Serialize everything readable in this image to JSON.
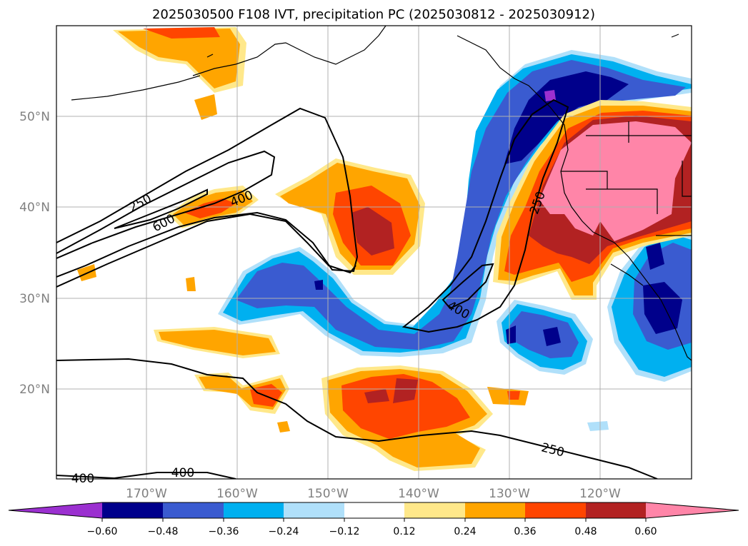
{
  "title": "2025030500 F108 IVT, precipitation PC (2025030812 - 2025030912)",
  "map": {
    "lon_range": [
      -180,
      -110
    ],
    "lat_range": [
      10,
      60
    ],
    "lat_ticks": [
      {
        "value": 20,
        "label": "20°N"
      },
      {
        "value": 30,
        "label": "30°N"
      },
      {
        "value": 40,
        "label": "40°N"
      },
      {
        "value": 50,
        "label": "50°N"
      }
    ],
    "lon_ticks": [
      {
        "value": -170,
        "label": "170°W"
      },
      {
        "value": -160,
        "label": "160°W"
      },
      {
        "value": -150,
        "label": "150°W"
      },
      {
        "value": -140,
        "label": "140°W"
      },
      {
        "value": -130,
        "label": "130°W"
      },
      {
        "value": -120,
        "label": "120°W"
      }
    ],
    "grid": true,
    "ivt_contour_labels": [
      "250",
      "600",
      "400",
      "250",
      "400",
      "250",
      "400",
      "400"
    ]
  },
  "colorbar": {
    "tick_labels": [
      "−0.60",
      "−0.48",
      "−0.36",
      "−0.24",
      "−0.12",
      "0.12",
      "0.24",
      "0.36",
      "0.48",
      "0.60"
    ],
    "colors": [
      "#9b30d0",
      "#00008b",
      "#3a5bd0",
      "#00b0f0",
      "#b0e0fa",
      "#ffffff",
      "#ffe88a",
      "#ffa500",
      "#ff4500",
      "#b22222",
      "#ff85a8"
    ]
  }
}
